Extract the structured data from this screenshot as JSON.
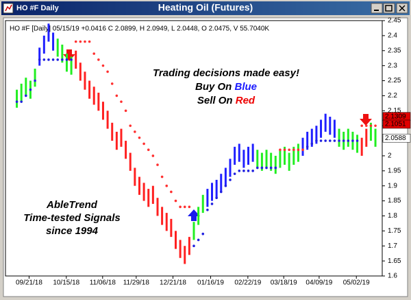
{
  "window_title": "HO #F Daily",
  "chart_data": {
    "type": "price-bars",
    "title": "Heating Oil (Futures)",
    "info": "HO #F [Daily] 05/15/19 +0.0416 C 2.0899, H 2.0949, L 2.0448, O 2.0475, V 55.7040K",
    "annotations": {
      "headline": "Trading decisions made easy!",
      "buy": "Buy On ",
      "buy_word": "Blue",
      "sell": "Sell On ",
      "sell_word": "Red",
      "brand": "AbleTrend",
      "tagline": "Time-tested Signals",
      "since": "since 1994"
    },
    "x": [
      0,
      1,
      2,
      3,
      4,
      5,
      6,
      7,
      8,
      9,
      10,
      11,
      12,
      13,
      14,
      15,
      16,
      17,
      18,
      19,
      20,
      21,
      22,
      23,
      24,
      25,
      26,
      27,
      28,
      29,
      30,
      31,
      32,
      33,
      34,
      35,
      36,
      37,
      38,
      39,
      40,
      41,
      42,
      43,
      44,
      45,
      46,
      47,
      48,
      49,
      50,
      51,
      52,
      53,
      54,
      55,
      56,
      57,
      58,
      59,
      60,
      61,
      62,
      63,
      64,
      65,
      66,
      67,
      68,
      69,
      70,
      71,
      72,
      73,
      74,
      75,
      76,
      77,
      78,
      79
    ],
    "high": [
      2.22,
      2.24,
      2.26,
      2.25,
      2.29,
      2.36,
      2.4,
      2.44,
      2.41,
      2.39,
      2.37,
      2.34,
      2.33,
      2.35,
      2.31,
      2.28,
      2.25,
      2.23,
      2.21,
      2.18,
      2.15,
      2.11,
      2.08,
      2.09,
      2.05,
      2.01,
      1.96,
      1.93,
      1.91,
      1.89,
      1.9,
      1.86,
      1.83,
      1.81,
      1.79,
      1.75,
      1.72,
      1.7,
      1.73,
      1.78,
      1.83,
      1.87,
      1.89,
      1.91,
      1.92,
      1.94,
      1.96,
      1.99,
      2.03,
      2.04,
      2.02,
      2.03,
      2.04,
      2.02,
      2.01,
      2.02,
      2.01,
      2.0,
      2.02,
      2.03,
      2.01,
      2.03,
      2.04,
      2.06,
      2.08,
      2.09,
      2.1,
      2.12,
      2.14,
      2.13,
      2.12,
      2.09,
      2.08,
      2.09,
      2.08,
      2.07,
      2.06,
      2.09,
      2.11,
      2.09
    ],
    "low": [
      2.16,
      2.18,
      2.2,
      2.19,
      2.23,
      2.3,
      2.34,
      2.38,
      2.35,
      2.33,
      2.31,
      2.28,
      2.27,
      2.29,
      2.25,
      2.22,
      2.19,
      2.17,
      2.15,
      2.12,
      2.09,
      2.05,
      2.02,
      2.03,
      1.99,
      1.95,
      1.9,
      1.87,
      1.85,
      1.83,
      1.84,
      1.8,
      1.77,
      1.75,
      1.73,
      1.69,
      1.66,
      1.64,
      1.67,
      1.72,
      1.77,
      1.81,
      1.83,
      1.85,
      1.86,
      1.88,
      1.9,
      1.93,
      1.97,
      1.98,
      1.96,
      1.97,
      1.98,
      1.96,
      1.95,
      1.96,
      1.95,
      1.94,
      1.96,
      1.97,
      1.95,
      1.97,
      1.98,
      2.0,
      2.02,
      2.03,
      2.04,
      2.06,
      2.08,
      2.07,
      2.06,
      2.03,
      2.02,
      2.03,
      2.02,
      2.01,
      2.0,
      2.03,
      2.05,
      2.03
    ],
    "colors": [
      "#22ee22",
      "#22ee22",
      "#22ee22",
      "#22ee22",
      "#22ee22",
      "#2020ff",
      "#2020ff",
      "#2020ff",
      "#2020ff",
      "#22ee22",
      "#22ee22",
      "#22ee22",
      "#22ee22",
      "#ff2020",
      "#ff2020",
      "#ff2020",
      "#ff2020",
      "#ff2020",
      "#ff2020",
      "#ff2020",
      "#ff2020",
      "#ff2020",
      "#ff2020",
      "#ff2020",
      "#ff2020",
      "#ff2020",
      "#ff2020",
      "#ff2020",
      "#ff2020",
      "#ff2020",
      "#ff2020",
      "#ff2020",
      "#ff2020",
      "#ff2020",
      "#ff2020",
      "#ff2020",
      "#ff2020",
      "#ff2020",
      "#ff2020",
      "#22ee22",
      "#22ee22",
      "#22ee22",
      "#2020ff",
      "#2020ff",
      "#2020ff",
      "#2020ff",
      "#2020ff",
      "#2020ff",
      "#2020ff",
      "#2020ff",
      "#2020ff",
      "#2020ff",
      "#2020ff",
      "#22ee22",
      "#22ee22",
      "#22ee22",
      "#22ee22",
      "#22ee22",
      "#22ee22",
      "#22ee22",
      "#22ee22",
      "#22ee22",
      "#22ee22",
      "#2020ff",
      "#2020ff",
      "#2020ff",
      "#2020ff",
      "#2020ff",
      "#2020ff",
      "#2020ff",
      "#2020ff",
      "#22ee22",
      "#22ee22",
      "#22ee22",
      "#22ee22",
      "#22ee22",
      "#ff2020",
      "#ff2020",
      "#22ee22",
      "#22ee22"
    ],
    "stops": [
      2.18,
      2.18,
      2.2,
      2.22,
      2.25,
      2.32,
      2.32,
      2.32,
      2.32,
      2.32,
      2.32,
      2.32,
      2.32,
      2.38,
      2.38,
      2.38,
      2.38,
      2.34,
      2.32,
      2.3,
      2.28,
      2.24,
      2.2,
      2.18,
      2.15,
      2.1,
      2.08,
      2.06,
      2.04,
      2.02,
      2.0,
      1.97,
      1.93,
      1.9,
      1.88,
      1.85,
      1.83,
      1.83,
      1.83,
      1.7,
      1.72,
      1.74,
      1.82,
      1.84,
      1.86,
      1.88,
      1.9,
      1.92,
      1.94,
      1.95,
      1.95,
      1.95,
      1.95,
      1.96,
      1.96,
      1.96,
      1.96,
      1.96,
      2.02,
      2.02,
      2.02,
      2.02,
      2.02,
      2.02,
      2.03,
      2.04,
      2.05,
      2.05,
      2.05,
      2.05,
      2.05,
      2.05,
      2.05,
      2.05,
      2.05,
      2.05,
      2.1,
      2.1,
      2.1,
      2.1
    ],
    "stop_colors": [
      "#2020e0",
      "#2020e0",
      "#2020e0",
      "#2020e0",
      "#2020e0",
      "#2020e0",
      "#2020e0",
      "#2020e0",
      "#2020e0",
      "#2020e0",
      "#2020e0",
      "#2020e0",
      "#2020e0",
      "#ff3030",
      "#ff3030",
      "#ff3030",
      "#ff3030",
      "#ff3030",
      "#ff3030",
      "#ff3030",
      "#ff3030",
      "#ff3030",
      "#ff3030",
      "#ff3030",
      "#ff3030",
      "#ff3030",
      "#ff3030",
      "#ff3030",
      "#ff3030",
      "#ff3030",
      "#ff3030",
      "#ff3030",
      "#ff3030",
      "#ff3030",
      "#ff3030",
      "#ff3030",
      "#ff3030",
      "#ff3030",
      "#ff3030",
      "#2020e0",
      "#2020e0",
      "#2020e0",
      "#2020e0",
      "#2020e0",
      "#2020e0",
      "#2020e0",
      "#2020e0",
      "#2020e0",
      "#2020e0",
      "#2020e0",
      "#2020e0",
      "#2020e0",
      "#2020e0",
      "#2020e0",
      "#2020e0",
      "#2020e0",
      "#2020e0",
      "#2020e0",
      "#ff3030",
      "#ff3030",
      "#ff3030",
      "#ff3030",
      "#ff3030",
      "#ff3030",
      "#2020e0",
      "#2020e0",
      "#2020e0",
      "#2020e0",
      "#2020e0",
      "#2020e0",
      "#2020e0",
      "#2020e0",
      "#2020e0",
      "#2020e0",
      "#2020e0",
      "#2020e0",
      "#ff3030",
      "#ff3030",
      "#ff3030",
      "#ff3030"
    ],
    "xlim": [
      -2.5,
      80.5
    ],
    "xticks": [
      {
        "value": 2.7,
        "label": "09/21/18"
      },
      {
        "value": 10.9,
        "label": "10/15/18"
      },
      {
        "value": 18.9,
        "label": "11/06/18"
      },
      {
        "value": 26.3,
        "label": "11/29/18"
      },
      {
        "value": 34.4,
        "label": "12/21/18"
      },
      {
        "value": 42.7,
        "label": "01/16/19"
      },
      {
        "value": 50.9,
        "label": "02/22/19"
      },
      {
        "value": 58.8,
        "label": "03/18/19"
      },
      {
        "value": 66.6,
        "label": "04/09/19"
      },
      {
        "value": 74.8,
        "label": "05/02/19"
      }
    ],
    "ylim": [
      1.6,
      2.45
    ],
    "yticks": [
      1.6,
      1.65,
      1.7,
      1.75,
      1.8,
      1.85,
      1.9,
      1.95,
      2,
      2.05,
      2.1,
      2.15,
      2.2,
      2.25,
      2.3,
      2.35,
      2.4,
      2.45
    ],
    "price_labels": [
      {
        "value": 2.1309,
        "color": "#e00000"
      },
      {
        "value": 2.1051,
        "color": "#e00000"
      },
      {
        "value": 2.0588,
        "color": "#ffffff"
      }
    ]
  }
}
